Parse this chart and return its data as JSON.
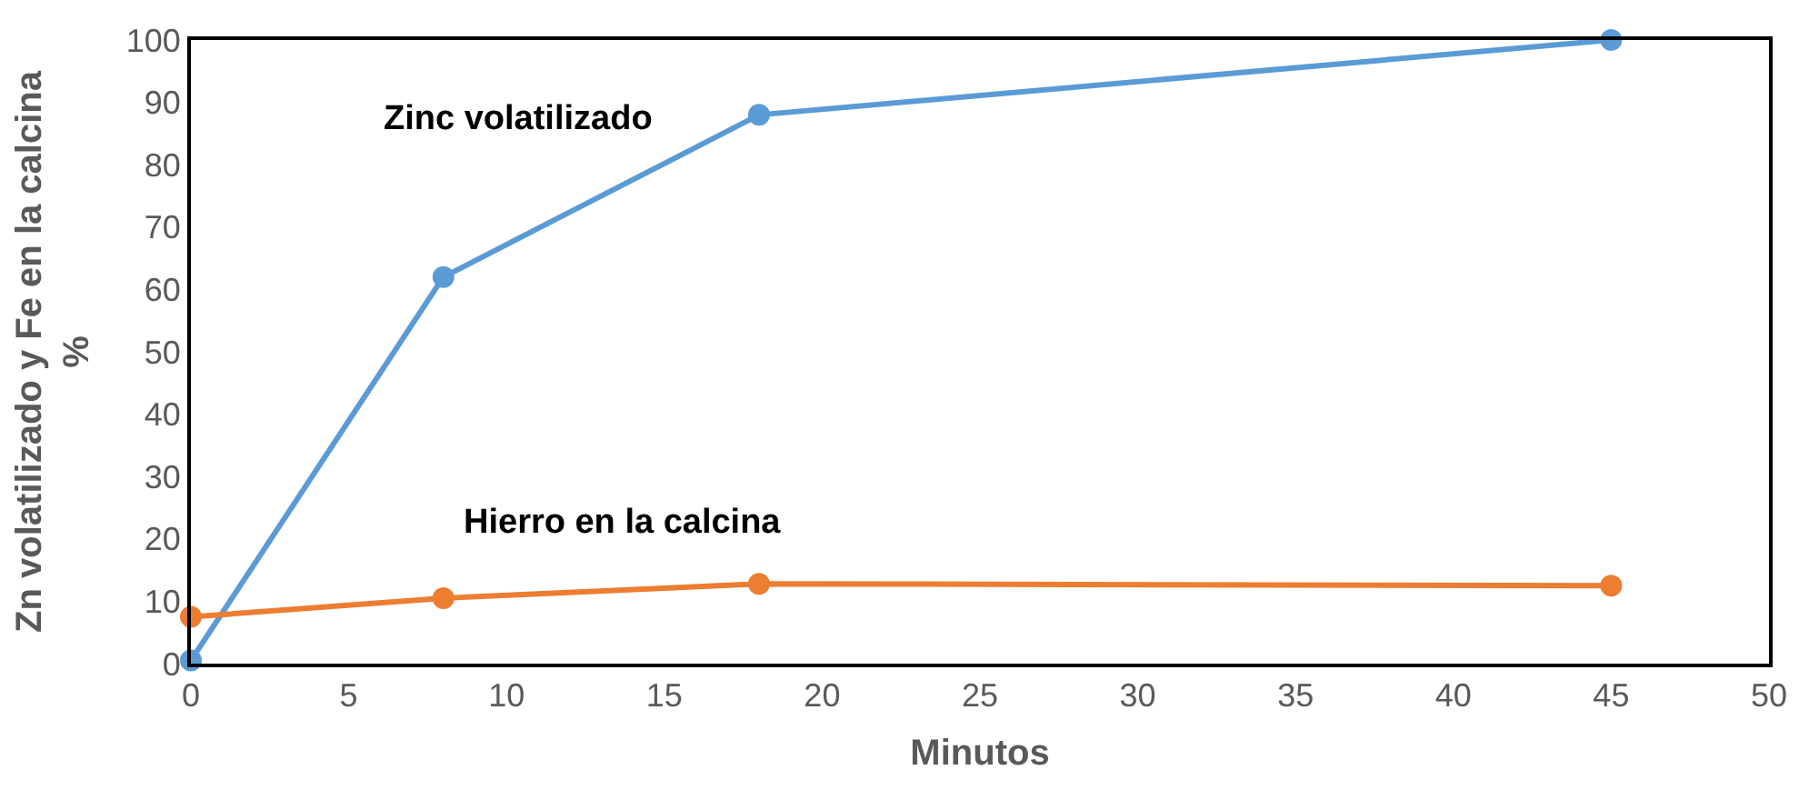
{
  "chart_data": {
    "type": "line",
    "xlabel": "Minutos",
    "ylabel": "Zn volatilizado y Fe en la calcina\n%",
    "xlim": [
      0,
      50
    ],
    "xticks": [
      0,
      5,
      10,
      15,
      20,
      25,
      30,
      35,
      40,
      45,
      50
    ],
    "ylim": [
      0,
      100
    ],
    "yticks": [
      0,
      10,
      20,
      30,
      40,
      50,
      60,
      70,
      80,
      90,
      100
    ],
    "legend": false,
    "marker": "circle",
    "line_style": "solid",
    "series": [
      {
        "name": "Zinc volatilizado",
        "color": "#5b9bd5",
        "x": [
          0,
          8,
          18,
          45
        ],
        "values": [
          0.5,
          62,
          88,
          100
        ]
      },
      {
        "name": "Hierro en la calcina",
        "color": "#ed7d31",
        "x": [
          0,
          8,
          18,
          45
        ],
        "values": [
          7.5,
          10.5,
          12.8,
          12.5
        ]
      }
    ]
  }
}
